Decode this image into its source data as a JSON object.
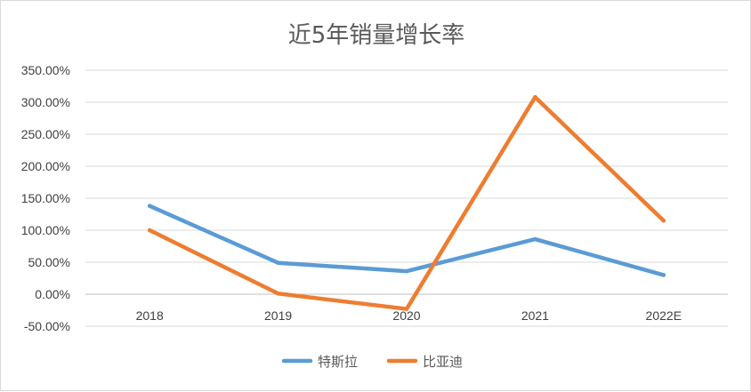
{
  "chart_data": {
    "type": "line",
    "title": "近5年销量增长率",
    "categories": [
      "2018",
      "2019",
      "2020",
      "2021",
      "2022E"
    ],
    "y_ticks": [
      "350.00%",
      "300.00%",
      "250.00%",
      "200.00%",
      "150.00%",
      "100.00%",
      "50.00%",
      "0.00%",
      "-50.00%"
    ],
    "ylim": [
      -50,
      350
    ],
    "y_unit": "%",
    "grid": true,
    "legend_position": "bottom",
    "series": [
      {
        "name": "特斯拉",
        "color": "#5b9bd5",
        "values": [
          138,
          49,
          36,
          86,
          30
        ]
      },
      {
        "name": "比亚迪",
        "color": "#ed7d31",
        "values": [
          100,
          1,
          -23,
          308,
          115
        ]
      }
    ]
  }
}
